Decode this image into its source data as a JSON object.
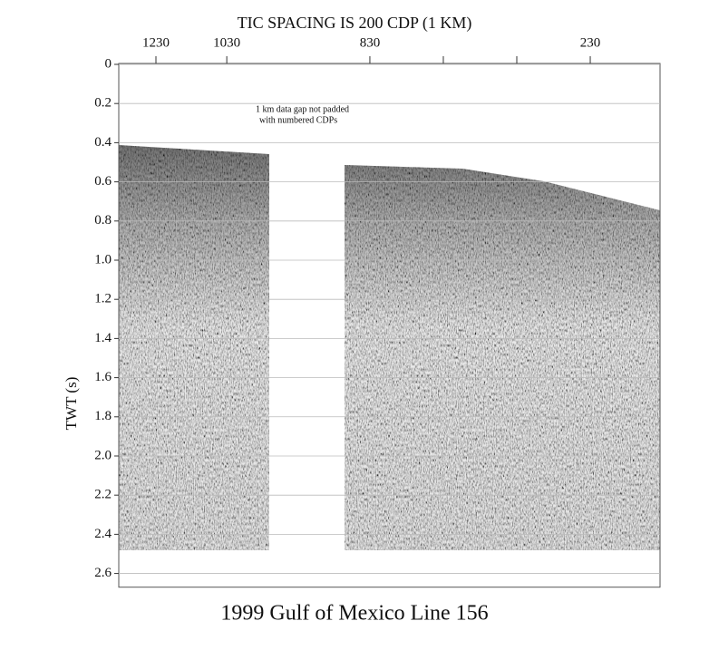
{
  "chart_data": {
    "type": "seismic-section",
    "title": "1999 Gulf of Mexico Line 156",
    "x_axis_title": "TIC SPACING IS 200 CDP (1 KM)",
    "ylabel": "TWT (s)",
    "annotation": [
      "1 km data gap not padded",
      "with numbered CDPs"
    ],
    "ylim": [
      0,
      2.67
    ],
    "yticks": [
      0,
      0.2,
      0.4,
      0.6,
      0.8,
      {
        "value": 1,
        "label": "1.0"
      },
      1.2,
      1.4,
      1.6,
      1.8,
      {
        "value": 2,
        "label": "2.0"
      },
      2.2,
      2.4,
      2.6
    ],
    "grid": true,
    "panels": [
      {
        "xlim": [
          1335,
          910
        ],
        "xticks": [
          1230,
          1030
        ],
        "xminor": []
      },
      {
        "xlim": [
          899,
          40
        ],
        "xticks": [
          830,
          230
        ],
        "xminor": [
          630,
          430
        ]
      }
    ]
  }
}
